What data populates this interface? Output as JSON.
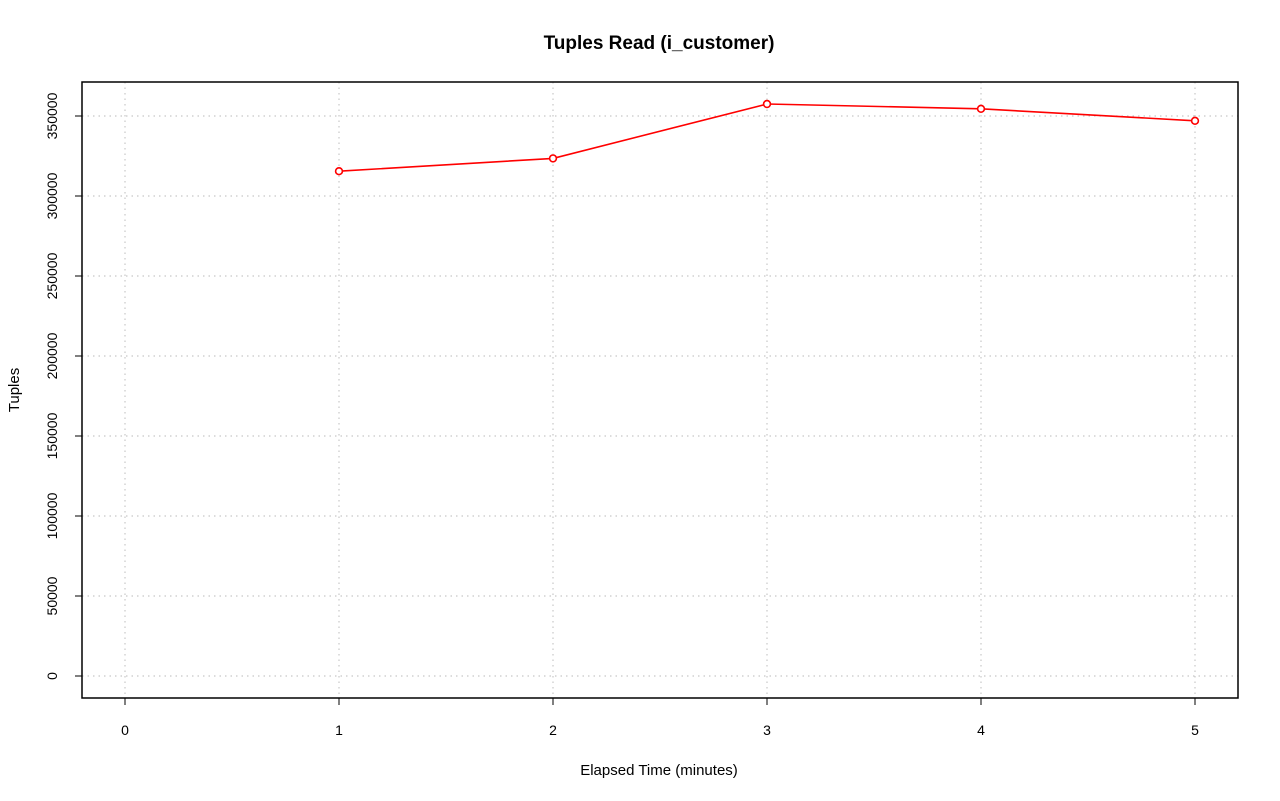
{
  "chart_data": {
    "type": "line",
    "title": "Tuples Read (i_customer)",
    "xlabel": "Elapsed Time (minutes)",
    "ylabel": "Tuples",
    "xlim": [
      0,
      5
    ],
    "ylim": [
      0,
      350000
    ],
    "x_ticks": [
      0,
      1,
      2,
      3,
      4,
      5
    ],
    "y_ticks": [
      0,
      50000,
      100000,
      150000,
      200000,
      250000,
      300000,
      350000
    ],
    "grid": true,
    "series": [
      {
        "color": "#ff0000",
        "marker": "open-circle",
        "x": [
          1,
          2,
          3,
          4,
          5
        ],
        "y": [
          315500,
          323500,
          357500,
          354500,
          347000
        ]
      }
    ]
  }
}
